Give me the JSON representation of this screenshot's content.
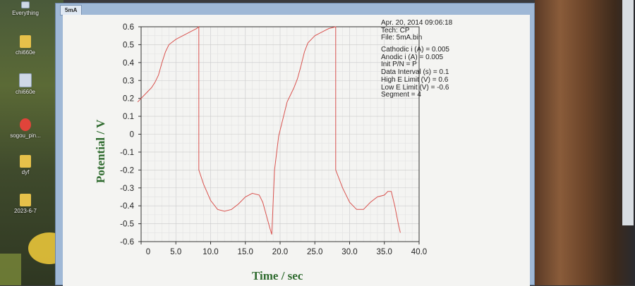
{
  "desktop": {
    "icons": [
      {
        "label": "Everything",
        "icon": "everything-icon"
      },
      {
        "label": "chi660e",
        "icon": "folder-icon"
      },
      {
        "label": "chi660e",
        "icon": "app-shortcut-icon"
      },
      {
        "label": "sogou_pin...",
        "icon": "sogou-icon"
      },
      {
        "label": "dyf",
        "icon": "folder-icon"
      },
      {
        "label": "2023-6-7",
        "icon": "folder-icon"
      }
    ]
  },
  "window": {
    "tab_label": "5mA"
  },
  "info": {
    "date": "Apr. 20, 2014   09:06:18",
    "tech": "Tech: CP",
    "file": "File: 5mA.bin",
    "cathodic": "Cathodic i (A) = 0.005",
    "anodic": "Anodic i (A) = 0.005",
    "init_pn": "Init P/N = P",
    "data_interval": "Data Interval (s) = 0.1",
    "high_e": "High E Limit (V) = 0.6",
    "low_e": "Low E Limit (V) = -0.6",
    "segment": "Segment = 4"
  },
  "chart_data": {
    "type": "line",
    "xlabel": "Time / sec",
    "ylabel": "Potential / V",
    "xlim": [
      0,
      40
    ],
    "ylim": [
      -0.6,
      0.6
    ],
    "x_ticks": [
      "0",
      "5.0",
      "10.0",
      "15.0",
      "20.0",
      "25.0",
      "30.0",
      "35.0",
      "40.0"
    ],
    "y_ticks": [
      "0.6",
      "0.5",
      "0.4",
      "0.3",
      "0.2",
      "0.1",
      "0",
      "-0.1",
      "-0.2",
      "-0.3",
      "-0.4",
      "-0.5",
      "-0.6"
    ],
    "line_color": "#d9534f",
    "grid": true,
    "series": [
      {
        "x": [
          -0.5,
          0.0,
          0.5,
          1.0,
          1.5,
          2.0,
          2.5,
          3.0,
          3.5,
          4.0,
          5.0,
          6.0,
          7.0,
          8.0,
          8.3,
          8.3,
          9.0,
          10.0,
          11.0,
          12.0,
          13.0,
          14.0,
          15.0,
          16.0,
          17.0,
          17.5,
          18.0,
          18.5,
          18.8,
          19.2,
          19.8,
          20.5,
          21.0,
          21.5,
          22.0,
          22.5,
          23.0,
          23.5,
          24.0,
          24.5,
          25.0,
          26.0,
          27.0,
          28.0,
          28.0,
          28.5,
          29.0,
          30.0,
          31.0,
          32.0,
          33.0,
          34.0,
          35.0,
          35.5,
          36.0,
          36.5,
          37.0,
          37.3
        ],
        "y": [
          0.18,
          0.2,
          0.22,
          0.24,
          0.26,
          0.29,
          0.33,
          0.4,
          0.46,
          0.5,
          0.53,
          0.55,
          0.57,
          0.59,
          0.6,
          -0.2,
          -0.28,
          -0.37,
          -0.42,
          -0.43,
          -0.42,
          -0.39,
          -0.35,
          -0.33,
          -0.34,
          -0.38,
          -0.45,
          -0.52,
          -0.56,
          -0.2,
          -0.01,
          0.1,
          0.18,
          0.22,
          0.26,
          0.31,
          0.38,
          0.46,
          0.51,
          0.53,
          0.55,
          0.57,
          0.59,
          0.6,
          -0.2,
          -0.25,
          -0.3,
          -0.38,
          -0.42,
          -0.42,
          -0.38,
          -0.35,
          -0.34,
          -0.32,
          -0.32,
          -0.4,
          -0.5,
          -0.55
        ]
      }
    ]
  }
}
